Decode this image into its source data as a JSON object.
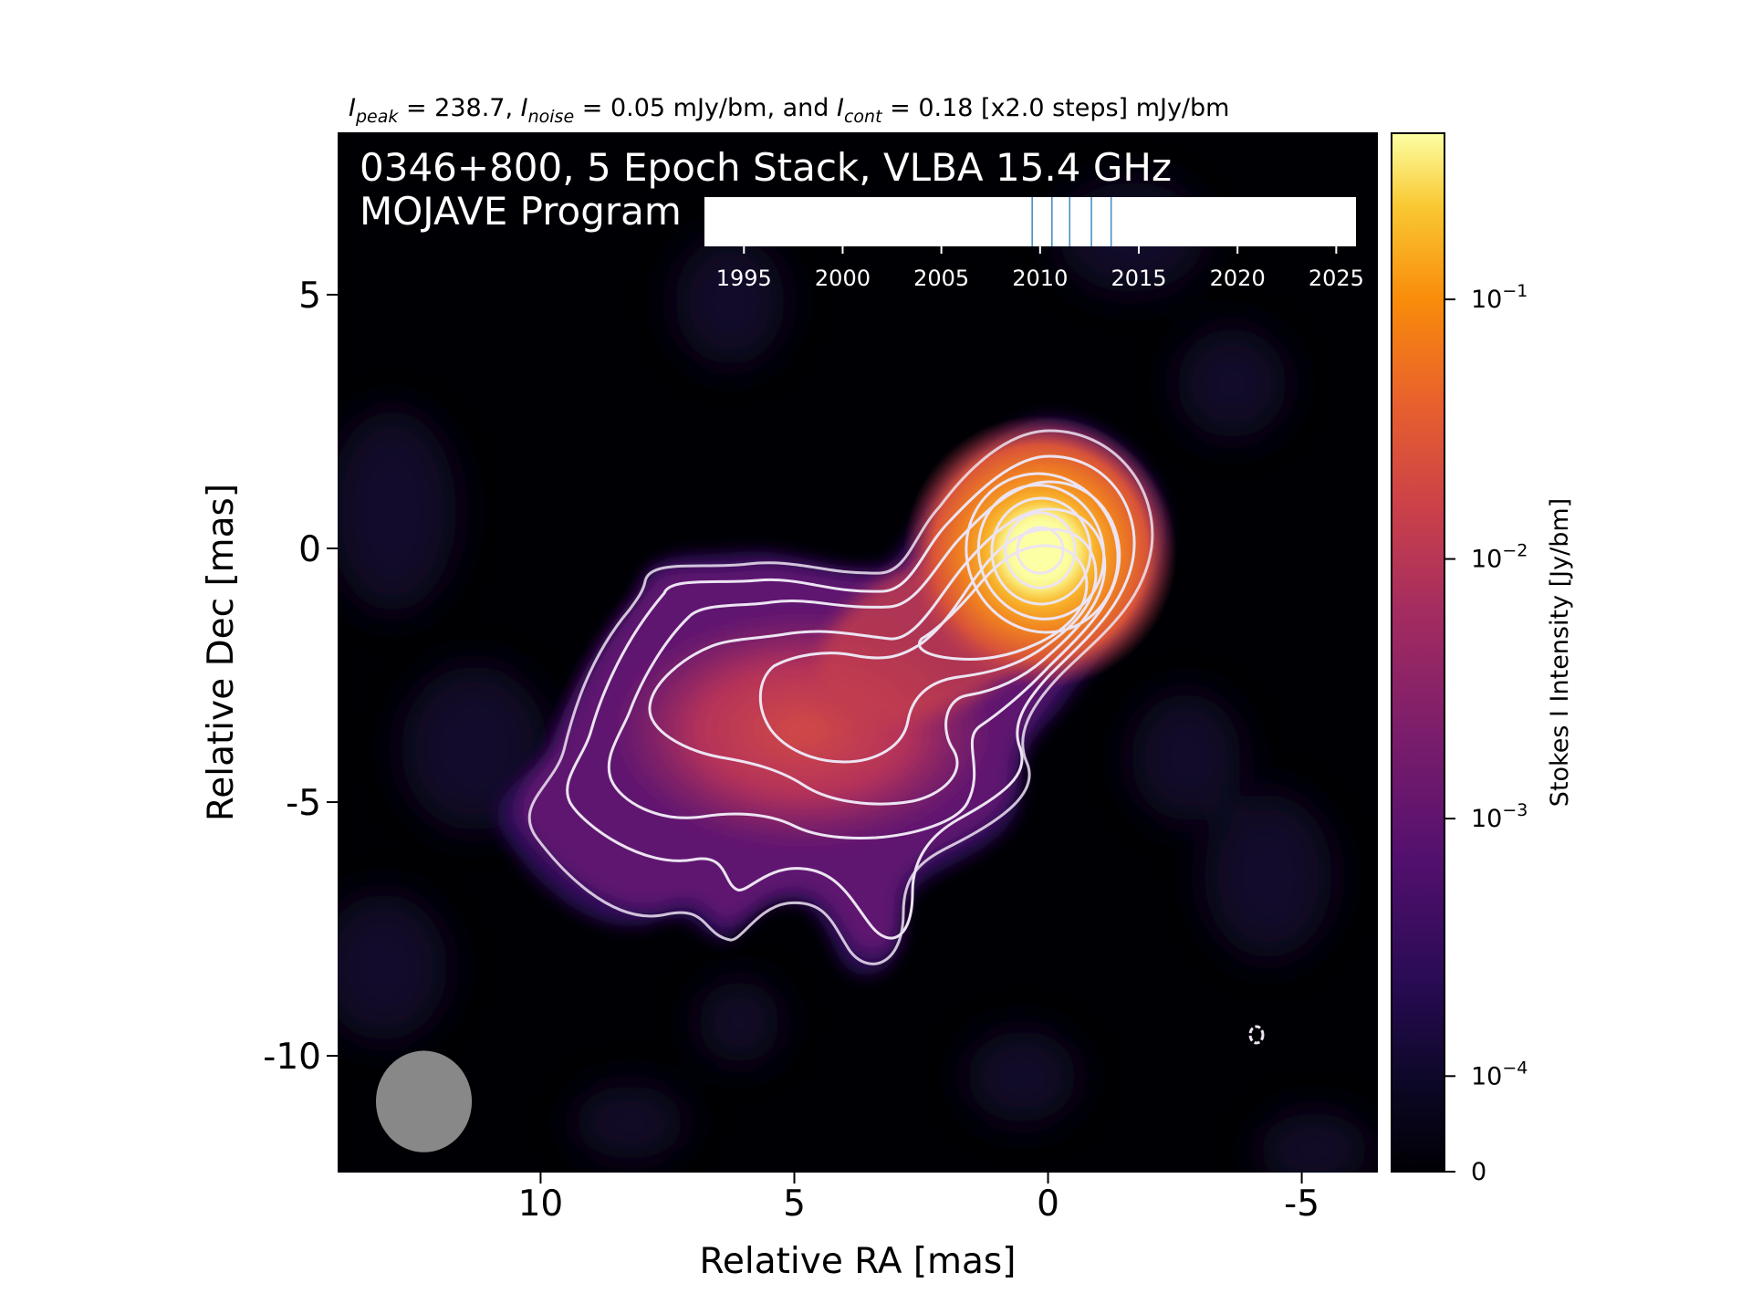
{
  "chart_data": {
    "type": "heatmap",
    "header": {
      "peak_value": "238.7",
      "noise_value": "0.05",
      "cont_value": "0.18",
      "steps": "[x2.0 steps]",
      "unit": "mJy/bm"
    },
    "title_line1": "0346+800, 5 Epoch Stack, VLBA 15.4 GHz",
    "title_line2": "MOJAVE Program",
    "xlabel": "Relative RA [mas]",
    "ylabel": "Relative Dec [mas]",
    "x_axis": {
      "reversed": true,
      "xlim": [
        14,
        -6.5
      ],
      "ticks": [
        {
          "value": 10,
          "label": "10"
        },
        {
          "value": 5,
          "label": "5"
        },
        {
          "value": 0,
          "label": "0"
        },
        {
          "value": -5,
          "label": "-5"
        }
      ]
    },
    "y_axis": {
      "ylim": [
        -12.3,
        8.2
      ],
      "ticks": [
        {
          "value": 5,
          "label": "5"
        },
        {
          "value": 0,
          "label": "0"
        },
        {
          "value": -5,
          "label": "-5"
        },
        {
          "value": -10,
          "label": "-10"
        }
      ]
    },
    "colorbar": {
      "label": "Stokes I Intensity [Jy/bm]",
      "scale": "symlog",
      "colormap": "inferno",
      "range": [
        0,
        0.2387
      ],
      "ticks": [
        {
          "label": "0"
        },
        {
          "label": "10",
          "exp": "−4"
        },
        {
          "label": "10",
          "exp": "−3"
        },
        {
          "label": "10",
          "exp": "−2"
        },
        {
          "label": "10",
          "exp": "−1"
        }
      ]
    },
    "epoch_timeline": {
      "range": [
        1993,
        2026
      ],
      "ticks": [
        "1995",
        "2000",
        "2005",
        "2010",
        "2015",
        "2020",
        "2025"
      ],
      "epochs": [
        2009.6,
        2010.6,
        2011.5,
        2012.6,
        2013.6
      ],
      "line_color": "#4a90c8"
    },
    "contour_levels_mJy": [
      0.18,
      0.36,
      0.72,
      1.44,
      2.88,
      5.76,
      11.52,
      23.04,
      46.08,
      92.16,
      184.32
    ],
    "beam": {
      "center_x": 12.3,
      "center_y": -10.9,
      "fwhm_major": 1.45,
      "fwhm_minor": 1.4
    },
    "peak": {
      "x": 0,
      "y": 0,
      "value_mJy": 238.7
    }
  }
}
